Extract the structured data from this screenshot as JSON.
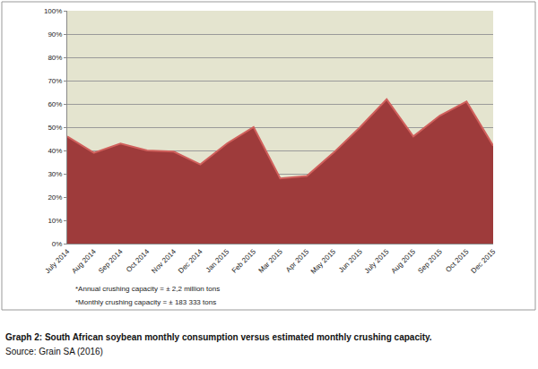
{
  "chart_data": {
    "type": "area",
    "title": "Graph 2: South African soybean monthly consumption versus estimated monthly crushing capacity.",
    "source": "Source: Grain SA (2016)",
    "annotations": [
      "*Annual crushing capacity = ± 2,2 million tons",
      "*Monthly crushing capacity = ± 183 333 tons"
    ],
    "categories": [
      "July 2014",
      "Aug 2014",
      "Sep 2014",
      "Oct 2014",
      "Nov 2014",
      "Dec 2014",
      "Jan 2015",
      "Feb 2015",
      "Mar 2015",
      "Apr 2015",
      "May 2015",
      "Jun 2015",
      "July 2015",
      "Aug 2015",
      "Sep 2015",
      "Oct 2015",
      "Dec 2015"
    ],
    "values": [
      46,
      39,
      43,
      40,
      39.5,
      34,
      43,
      50,
      28,
      29,
      39,
      50,
      62,
      46,
      55,
      61,
      42
    ],
    "color": "#9e3b3b",
    "ylim": [
      0,
      100
    ],
    "yticks": [
      {
        "value": 0,
        "label": "0%"
      },
      {
        "value": 10,
        "label": "10%"
      },
      {
        "value": 20,
        "label": "20%"
      },
      {
        "value": 30,
        "label": "30%"
      },
      {
        "value": 40,
        "label": "40%"
      },
      {
        "value": 50,
        "label": "50%"
      },
      {
        "value": 60,
        "label": "60%"
      },
      {
        "value": 70,
        "label": "70%"
      },
      {
        "value": 80,
        "label": "80%"
      },
      {
        "value": 90,
        "label": "90%"
      },
      {
        "value": 100,
        "label": "100%"
      }
    ],
    "grid": true
  }
}
